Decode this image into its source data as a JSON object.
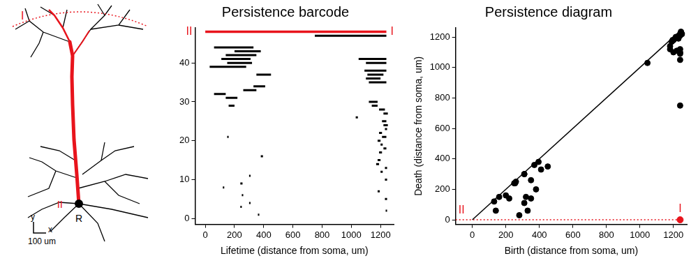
{
  "neuron": {
    "top_label": "I",
    "soma_label": "II",
    "root_label": "R",
    "label_color": "#e8141c",
    "scale_bar": {
      "y_label": "y",
      "x_label": "x",
      "length_label": "100 um"
    }
  },
  "chart_data": [
    {
      "type": "barcode",
      "title": "Persistence barcode",
      "x_label": "Lifetime (distance from soma, um)",
      "xlim": [
        -70,
        1290
      ],
      "xticks": [
        0,
        200,
        400,
        600,
        800,
        1000,
        1200
      ],
      "ylim": [
        -1.5,
        49
      ],
      "yticks": [
        0,
        10,
        20,
        30,
        40
      ],
      "grid": false,
      "color": "#000000",
      "bars": {
        "y": [
          47,
          44,
          43,
          42,
          41,
          41,
          40,
          40,
          39,
          38,
          37,
          37,
          36,
          35,
          34,
          33,
          32,
          31,
          30,
          29,
          29,
          28,
          27,
          26,
          25,
          24,
          23,
          22,
          21,
          21,
          20,
          19,
          18,
          17,
          16,
          15,
          14,
          13,
          12,
          11,
          10,
          9,
          8,
          7,
          6,
          5,
          4,
          3,
          2,
          1
        ],
        "start": [
          750,
          60,
          200,
          140,
          110,
          1050,
          150,
          1100,
          30,
          1090,
          350,
          1110,
          1100,
          1120,
          330,
          260,
          60,
          140,
          1120,
          160,
          1140,
          1190,
          1220,
          1030,
          1210,
          1220,
          1230,
          1190,
          150,
          1210,
          1180,
          1200,
          1220,
          1190,
          380,
          1180,
          1170,
          1230,
          1200,
          300,
          1230,
          240,
          120,
          1180,
          250,
          1230,
          300,
          240,
          1235,
          360
        ],
        "end": [
          1240,
          330,
          380,
          350,
          310,
          1240,
          320,
          1240,
          280,
          1240,
          450,
          1220,
          1200,
          1240,
          410,
          350,
          140,
          220,
          1180,
          200,
          1180,
          1230,
          1250,
          1045,
          1240,
          1250,
          1245,
          1210,
          160,
          1240,
          1200,
          1215,
          1240,
          1210,
          395,
          1200,
          1190,
          1245,
          1215,
          310,
          1245,
          255,
          130,
          1195,
          260,
          1245,
          310,
          250,
          1245,
          370
        ]
      },
      "highlight": {
        "y": 48,
        "start": 0,
        "end": 1240,
        "start_label": "II",
        "end_label": "I",
        "color": "#e8141c"
      }
    },
    {
      "type": "scatter",
      "title": "Persistence diagram",
      "x_label": "Birth (distance from soma, um)",
      "y_label": "Death (distance from soma, um)",
      "xlim": [
        -100,
        1280
      ],
      "xticks": [
        0,
        200,
        400,
        600,
        800,
        1000,
        1200
      ],
      "ylim": [
        -30,
        1260
      ],
      "yticks": [
        0,
        200,
        400,
        600,
        800,
        1000,
        1200
      ],
      "grid": false,
      "color": "#000000",
      "x": [
        1240,
        330,
        380,
        350,
        310,
        1240,
        320,
        1240,
        280,
        1240,
        450,
        1220,
        1200,
        1240,
        410,
        350,
        140,
        220,
        1180,
        200,
        1180,
        1230,
        1250,
        1045,
        1240,
        1250,
        1245,
        1210,
        160,
        1240,
        1200,
        1215,
        1240,
        1210,
        395,
        1200,
        1190,
        1245,
        1215,
        310,
        1245,
        255,
        130,
        1195,
        260,
        1245,
        310,
        250,
        1245,
        370
      ],
      "y": [
        750,
        60,
        200,
        140,
        110,
        1050,
        150,
        1100,
        30,
        1090,
        350,
        1110,
        1100,
        1120,
        330,
        260,
        60,
        140,
        1120,
        160,
        1140,
        1190,
        1220,
        1030,
        1210,
        1220,
        1230,
        1190,
        150,
        1210,
        1180,
        1200,
        1220,
        1190,
        380,
        1180,
        1170,
        1230,
        1200,
        300,
        1230,
        240,
        120,
        1180,
        250,
        1230,
        300,
        240,
        1235,
        360
      ],
      "diagonal": {
        "x": [
          0,
          1240
        ],
        "y": [
          0,
          1240
        ]
      },
      "highlight": {
        "x": 1240,
        "y": 0,
        "start_label": "II",
        "end_label": "I",
        "color": "#e8141c"
      }
    }
  ]
}
